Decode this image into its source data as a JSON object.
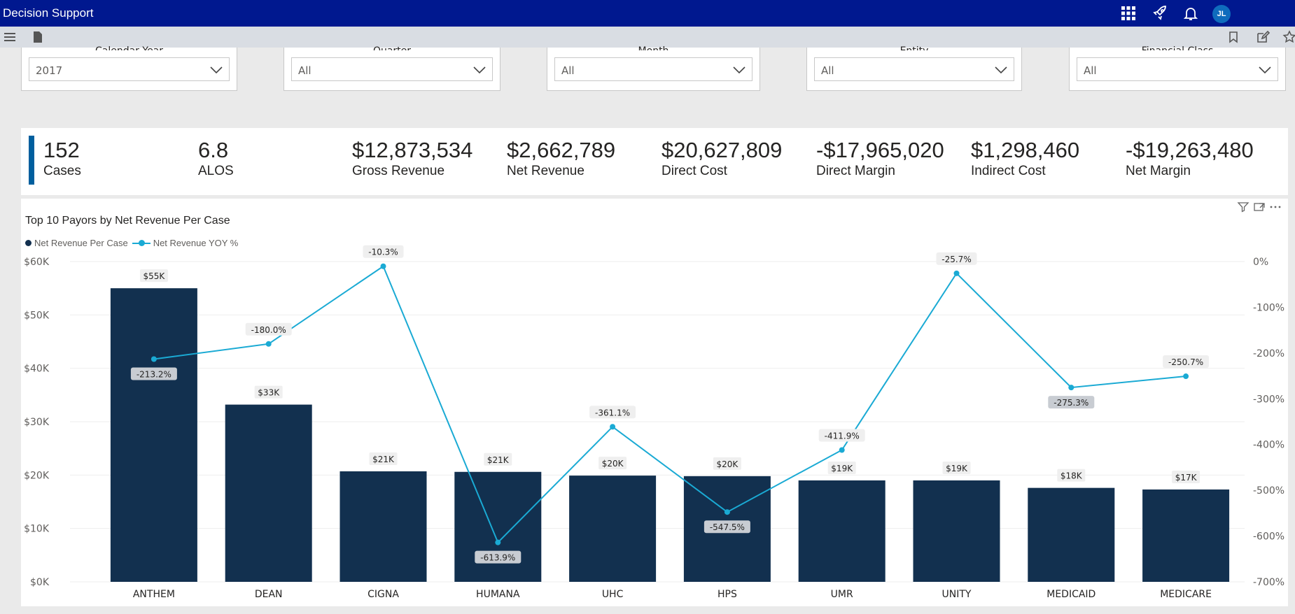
{
  "app": {
    "title": "Decision Support",
    "user_initials": "JL"
  },
  "icons": {
    "apps": "grid-icon",
    "launch": "rocket-icon",
    "notifications": "bell-icon",
    "menu": "hamburger-icon",
    "page": "page-icon",
    "bookmark": "bookmark-icon",
    "edit": "edit-icon",
    "favorite": "star-icon",
    "filter": "filter-icon",
    "focus": "expand-icon",
    "more": "more-icon"
  },
  "filters": [
    {
      "label": "Calendar Year",
      "value": "2017"
    },
    {
      "label": "Quarter",
      "value": "All"
    },
    {
      "label": "Month",
      "value": "All"
    },
    {
      "label": "Entity",
      "value": "All"
    },
    {
      "label": "Financial Class",
      "value": "All"
    }
  ],
  "kpis": [
    {
      "value": "152",
      "label": "Cases"
    },
    {
      "value": "6.8",
      "label": "ALOS"
    },
    {
      "value": "$12,873,534",
      "label": "Gross Revenue"
    },
    {
      "value": "$2,662,789",
      "label": "Net Revenue"
    },
    {
      "value": "$20,627,809",
      "label": "Direct Cost"
    },
    {
      "value": "-$17,965,020",
      "label": "Direct Margin"
    },
    {
      "value": "$1,298,460",
      "label": "Indirect Cost"
    },
    {
      "value": "-$19,263,480",
      "label": "Net Margin"
    }
  ],
  "chart": {
    "title": "Top 10 Payors by Net Revenue Per Case",
    "legend": [
      "Net Revenue Per Case",
      "Net Revenue YOY %"
    ]
  },
  "colors": {
    "topbar": "#00188f",
    "bar": "#12304f",
    "line": "#1aaad4",
    "accent": "#005f9e"
  },
  "chart_data": {
    "type": "bar",
    "title": "Top 10 Payors by Net Revenue Per Case",
    "categories": [
      "ANTHEM",
      "DEAN",
      "CIGNA",
      "HUMANA",
      "UHC",
      "HPS",
      "UMR",
      "UNITY",
      "MEDICAID",
      "MEDICARE"
    ],
    "series": [
      {
        "name": "Net Revenue Per Case",
        "type": "bar",
        "axis": "left",
        "values": [
          55000,
          33200,
          20700,
          20600,
          19900,
          19800,
          19000,
          19000,
          17600,
          17300
        ],
        "labels": [
          "$55K",
          "$33K",
          "$21K",
          "$21K",
          "$20K",
          "$20K",
          "$19K",
          "$19K",
          "$18K",
          "$17K"
        ]
      },
      {
        "name": "Net Revenue YOY %",
        "type": "line",
        "axis": "right",
        "values": [
          -213.2,
          -180.0,
          -10.3,
          -613.9,
          -361.1,
          -547.5,
          -411.9,
          -25.7,
          -275.3,
          -250.7
        ],
        "labels": [
          "-213.2%",
          "-180.0%",
          "-10.3%",
          "-613.9%",
          "-361.1%",
          "-547.5%",
          "-411.9%",
          "-25.7%",
          "-275.3%",
          "-250.7%"
        ]
      }
    ],
    "y_left": {
      "ylim": [
        0,
        60000
      ],
      "ticks": [
        "$0K",
        "$10K",
        "$20K",
        "$30K",
        "$40K",
        "$50K",
        "$60K"
      ]
    },
    "y_right": {
      "ylim": [
        -700,
        0
      ],
      "ticks": [
        "0%",
        "-100%",
        "-200%",
        "-300%",
        "-400%",
        "-500%",
        "-600%",
        "-700%"
      ]
    },
    "grid": true,
    "legend_position": "top-left"
  }
}
